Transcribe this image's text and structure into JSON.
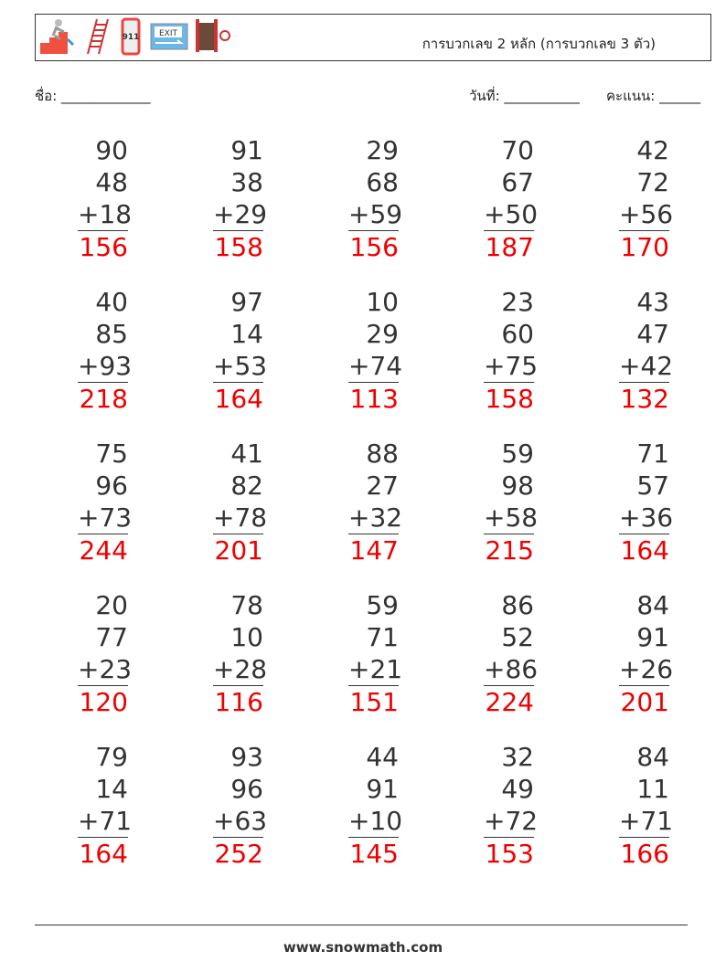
{
  "header": {
    "title": "การบวกเลข 2 หลัก (การบวกเลข 3 ตัว)",
    "icons": [
      "stairs-exit-icon",
      "ladder-icon",
      "phone-911-icon",
      "exit-sign-icon",
      "fire-hose-icon"
    ]
  },
  "labels": {
    "name": "ชื่อ: _____________",
    "date": "วันที่: ___________",
    "score": "คะแนน: ______"
  },
  "icon_text": {
    "phone": "911",
    "exit": "EXIT"
  },
  "problems": [
    {
      "a": "90",
      "b": "48",
      "c": "+18",
      "answer": "156"
    },
    {
      "a": "91",
      "b": "38",
      "c": "+29",
      "answer": "158"
    },
    {
      "a": "29",
      "b": "68",
      "c": "+59",
      "answer": "156"
    },
    {
      "a": "70",
      "b": "67",
      "c": "+50",
      "answer": "187"
    },
    {
      "a": "42",
      "b": "72",
      "c": "+56",
      "answer": "170"
    },
    {
      "a": "40",
      "b": "85",
      "c": "+93",
      "answer": "218"
    },
    {
      "a": "97",
      "b": "14",
      "c": "+53",
      "answer": "164"
    },
    {
      "a": "10",
      "b": "29",
      "c": "+74",
      "answer": "113"
    },
    {
      "a": "23",
      "b": "60",
      "c": "+75",
      "answer": "158"
    },
    {
      "a": "43",
      "b": "47",
      "c": "+42",
      "answer": "132"
    },
    {
      "a": "75",
      "b": "96",
      "c": "+73",
      "answer": "244"
    },
    {
      "a": "41",
      "b": "82",
      "c": "+78",
      "answer": "201"
    },
    {
      "a": "88",
      "b": "27",
      "c": "+32",
      "answer": "147"
    },
    {
      "a": "59",
      "b": "98",
      "c": "+58",
      "answer": "215"
    },
    {
      "a": "71",
      "b": "57",
      "c": "+36",
      "answer": "164"
    },
    {
      "a": "20",
      "b": "77",
      "c": "+23",
      "answer": "120"
    },
    {
      "a": "78",
      "b": "10",
      "c": "+28",
      "answer": "116"
    },
    {
      "a": "59",
      "b": "71",
      "c": "+21",
      "answer": "151"
    },
    {
      "a": "86",
      "b": "52",
      "c": "+86",
      "answer": "224"
    },
    {
      "a": "84",
      "b": "91",
      "c": "+26",
      "answer": "201"
    },
    {
      "a": "79",
      "b": "14",
      "c": "+71",
      "answer": "164"
    },
    {
      "a": "93",
      "b": "96",
      "c": "+63",
      "answer": "252"
    },
    {
      "a": "44",
      "b": "91",
      "c": "+10",
      "answer": "145"
    },
    {
      "a": "32",
      "b": "49",
      "c": "+72",
      "answer": "153"
    },
    {
      "a": "84",
      "b": "11",
      "c": "+71",
      "answer": "166"
    }
  ],
  "colors": {
    "answer": "#ee0000"
  },
  "footer": "www.snowmath.com"
}
